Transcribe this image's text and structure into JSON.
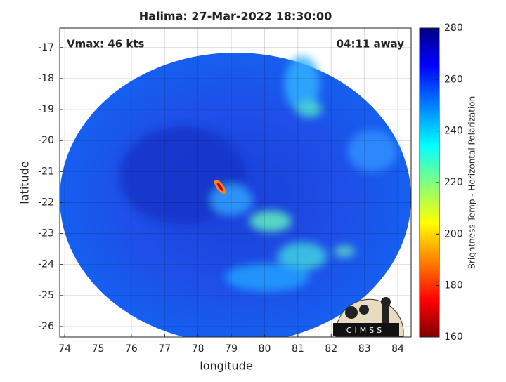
{
  "title": "Halima: 27-Mar-2022 18:30:00",
  "annotations": {
    "vmax": "Vmax: 46 kts",
    "time_away": "04:11 away"
  },
  "x_axis": {
    "label": "longitude",
    "lim": [
      73.85,
      84.4
    ],
    "ticks": [
      74,
      75,
      76,
      77,
      78,
      79,
      80,
      81,
      82,
      83,
      84
    ]
  },
  "y_axis": {
    "label": "latitude",
    "lim": [
      -26.34,
      -16.37
    ],
    "ticks": [
      -17,
      -18,
      -19,
      -20,
      -21,
      -22,
      -23,
      -24,
      -25,
      -26
    ]
  },
  "colorbar": {
    "label": "Brightness Temp - Horizontal Polarization",
    "lim": [
      160,
      280
    ],
    "ticks": [
      160,
      180,
      200,
      220,
      240,
      260,
      280
    ]
  },
  "logo": "CIMSS"
}
